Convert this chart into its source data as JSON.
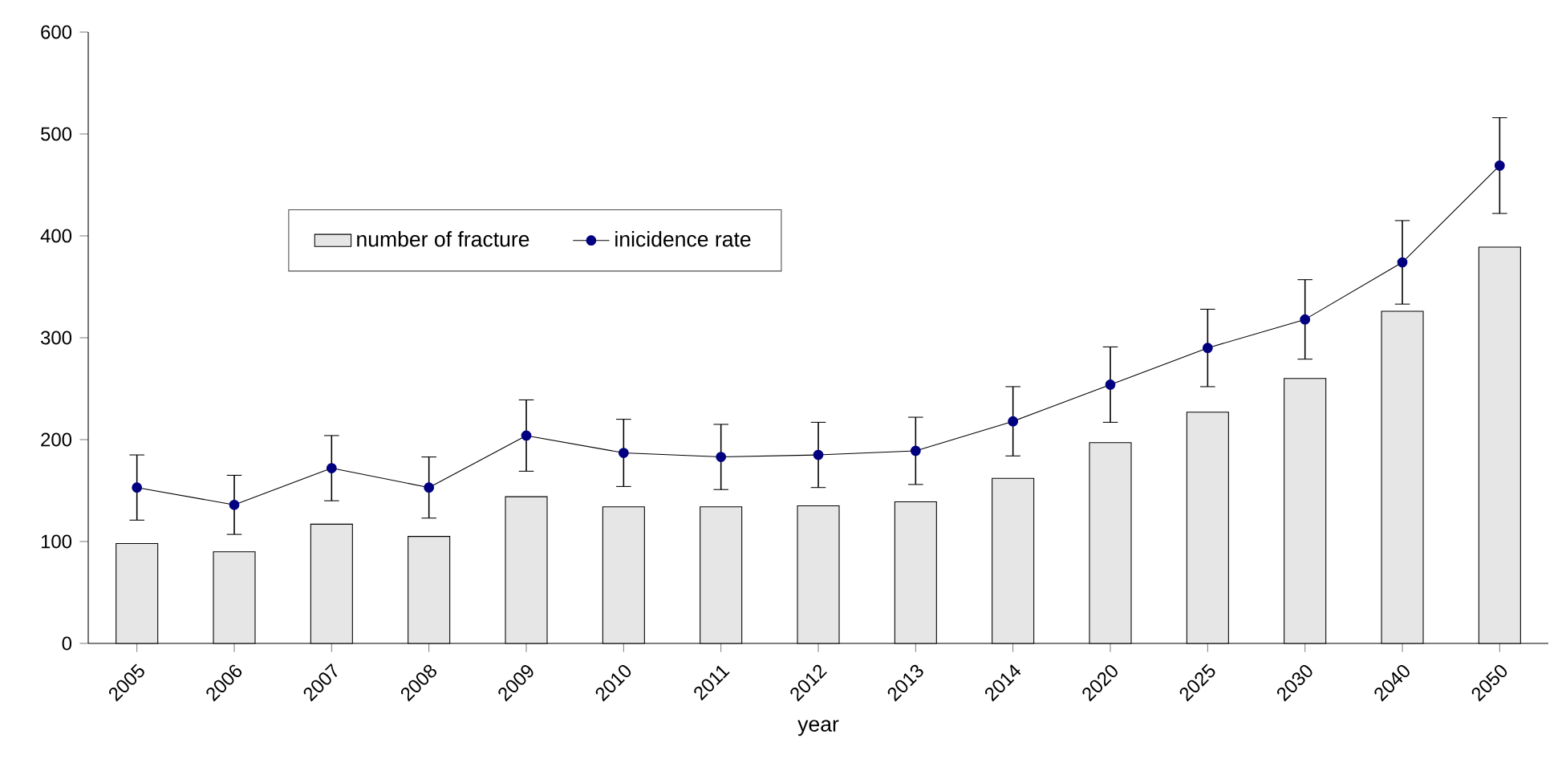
{
  "chart_data": {
    "type": "bar",
    "xlabel": "year",
    "categories": [
      "2005",
      "2006",
      "2007",
      "2008",
      "2009",
      "2010",
      "2011",
      "2012",
      "2013",
      "2014",
      "2020",
      "2025",
      "2030",
      "2040",
      "2050"
    ],
    "series": [
      {
        "name": "number of fracture",
        "color": "#e6e6e6",
        "values": [
          98,
          90,
          117,
          105,
          144,
          134,
          134,
          135,
          139,
          162,
          197,
          227,
          260,
          326,
          389
        ]
      },
      {
        "name": "inicidence rate",
        "type": "line",
        "color": "#000080",
        "marker": "circle",
        "line_style": "solid",
        "values": [
          153,
          136,
          172,
          153,
          204,
          187,
          183,
          185,
          189,
          218,
          254,
          290,
          318,
          374,
          469
        ],
        "errors": [
          32,
          29,
          32,
          30,
          35,
          33,
          32,
          32,
          33,
          34,
          37,
          38,
          39,
          41,
          47
        ]
      }
    ],
    "ylim": [
      0,
      600
    ],
    "yticks": [
      0,
      100,
      200,
      300,
      400,
      500,
      600
    ],
    "grid": false,
    "legend": "top left"
  }
}
